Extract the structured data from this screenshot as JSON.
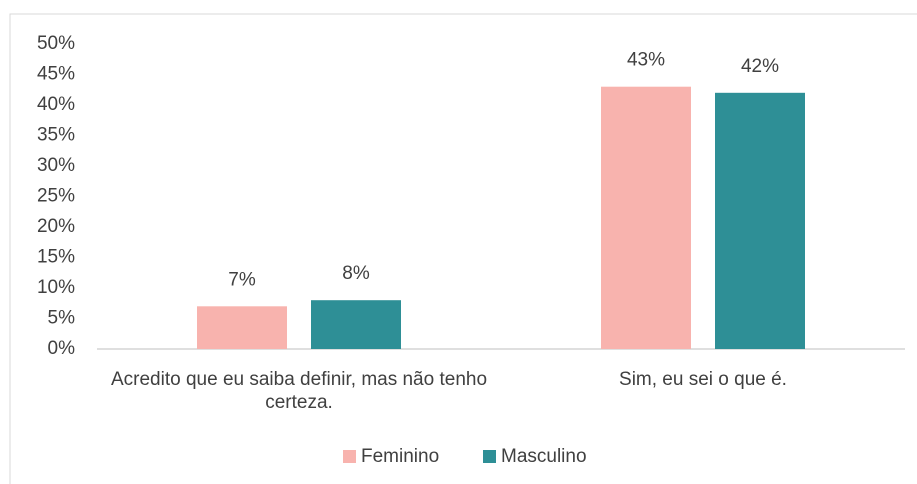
{
  "chart_data": {
    "type": "bar",
    "categories": [
      "Acredito que eu saiba definir, mas não tenho certeza.",
      "Sim, eu sei o que é."
    ],
    "series": [
      {
        "name": "Feminino",
        "color": "#f8b3ae",
        "values": [
          7,
          43
        ],
        "value_labels": [
          "7%",
          "43%"
        ]
      },
      {
        "name": "Masculino",
        "color": "#2e8f96",
        "values": [
          8,
          42
        ],
        "value_labels": [
          "8%",
          "42%"
        ]
      }
    ],
    "ylim": [
      0,
      50
    ],
    "yticks": [
      {
        "value": 0,
        "label": "0%"
      },
      {
        "value": 5,
        "label": "5%"
      },
      {
        "value": 10,
        "label": "10%"
      },
      {
        "value": 15,
        "label": "15%"
      },
      {
        "value": 20,
        "label": "20%"
      },
      {
        "value": 25,
        "label": "25%"
      },
      {
        "value": 30,
        "label": "30%"
      },
      {
        "value": 35,
        "label": "35%"
      },
      {
        "value": 40,
        "label": "40%"
      },
      {
        "value": 45,
        "label": "45%"
      },
      {
        "value": 50,
        "label": "50%"
      }
    ],
    "grid": false,
    "legend": "bottom"
  }
}
